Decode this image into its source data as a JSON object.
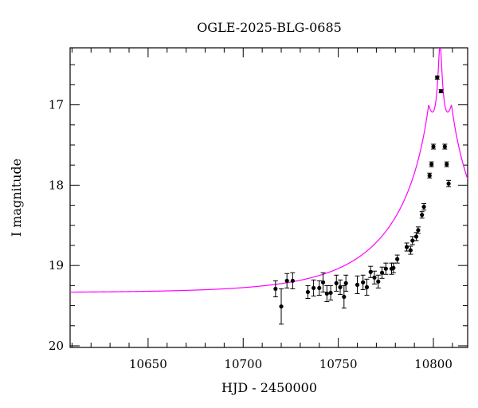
{
  "chart_data": {
    "type": "scatter",
    "title": "OGLE-2025-BLG-0685",
    "xlabel": "HJD - 2450000",
    "ylabel": "I magnitude",
    "xlim": [
      10609,
      10818
    ],
    "ylim": [
      16.29,
      20.02
    ],
    "y_inverted": true,
    "grid": false,
    "x_major_ticks": [
      10650,
      10700,
      10750,
      10800
    ],
    "x_minor_step": 10,
    "y_major_ticks": [
      17,
      18,
      19,
      20
    ],
    "y_minor_step": 0.25,
    "model_color": "#ff00ff",
    "point_color": "#000000",
    "model": {
      "name": "",
      "baseline_mag": 19.34,
      "peak_time": 10803.5,
      "peak_mag": 16.3,
      "u0": 0.0145,
      "tE": 52.0
    },
    "points": [
      {
        "x": 10717,
        "y": 19.29,
        "err": 0.1
      },
      {
        "x": 10720,
        "y": 19.51,
        "err": 0.22
      },
      {
        "x": 10723,
        "y": 19.19,
        "err": 0.09
      },
      {
        "x": 10726,
        "y": 19.19,
        "err": 0.1
      },
      {
        "x": 10734,
        "y": 19.33,
        "err": 0.08
      },
      {
        "x": 10737,
        "y": 19.28,
        "err": 0.1
      },
      {
        "x": 10740,
        "y": 19.28,
        "err": 0.09
      },
      {
        "x": 10742,
        "y": 19.21,
        "err": 0.12
      },
      {
        "x": 10744,
        "y": 19.35,
        "err": 0.1
      },
      {
        "x": 10746,
        "y": 19.34,
        "err": 0.09
      },
      {
        "x": 10749,
        "y": 19.22,
        "err": 0.1
      },
      {
        "x": 10751,
        "y": 19.27,
        "err": 0.09
      },
      {
        "x": 10753,
        "y": 19.39,
        "err": 0.14
      },
      {
        "x": 10754,
        "y": 19.22,
        "err": 0.1
      },
      {
        "x": 10760,
        "y": 19.24,
        "err": 0.11
      },
      {
        "x": 10763,
        "y": 19.21,
        "err": 0.09
      },
      {
        "x": 10765,
        "y": 19.27,
        "err": 0.1
      },
      {
        "x": 10767,
        "y": 19.08,
        "err": 0.07
      },
      {
        "x": 10769,
        "y": 19.15,
        "err": 0.08
      },
      {
        "x": 10771,
        "y": 19.2,
        "err": 0.08
      },
      {
        "x": 10773,
        "y": 19.09,
        "err": 0.07
      },
      {
        "x": 10775,
        "y": 19.04,
        "err": 0.07
      },
      {
        "x": 10778,
        "y": 19.04,
        "err": 0.07
      },
      {
        "x": 10779,
        "y": 19.03,
        "err": 0.06
      },
      {
        "x": 10781,
        "y": 18.92,
        "err": 0.05
      },
      {
        "x": 10786,
        "y": 18.77,
        "err": 0.05
      },
      {
        "x": 10788,
        "y": 18.81,
        "err": 0.05
      },
      {
        "x": 10789,
        "y": 18.69,
        "err": 0.05
      },
      {
        "x": 10791,
        "y": 18.64,
        "err": 0.05
      },
      {
        "x": 10792,
        "y": 18.56,
        "err": 0.04
      },
      {
        "x": 10794,
        "y": 18.37,
        "err": 0.04
      },
      {
        "x": 10795,
        "y": 18.27,
        "err": 0.04
      },
      {
        "x": 10798,
        "y": 17.88,
        "err": 0.03
      },
      {
        "x": 10799,
        "y": 17.74,
        "err": 0.03
      },
      {
        "x": 10800,
        "y": 17.52,
        "err": 0.03
      },
      {
        "x": 10802,
        "y": 16.66,
        "err": 0.02
      },
      {
        "x": 10804,
        "y": 16.83,
        "err": 0.02
      },
      {
        "x": 10806,
        "y": 17.52,
        "err": 0.03
      },
      {
        "x": 10807,
        "y": 17.74,
        "err": 0.03
      },
      {
        "x": 10808,
        "y": 17.98,
        "err": 0.04
      }
    ]
  }
}
